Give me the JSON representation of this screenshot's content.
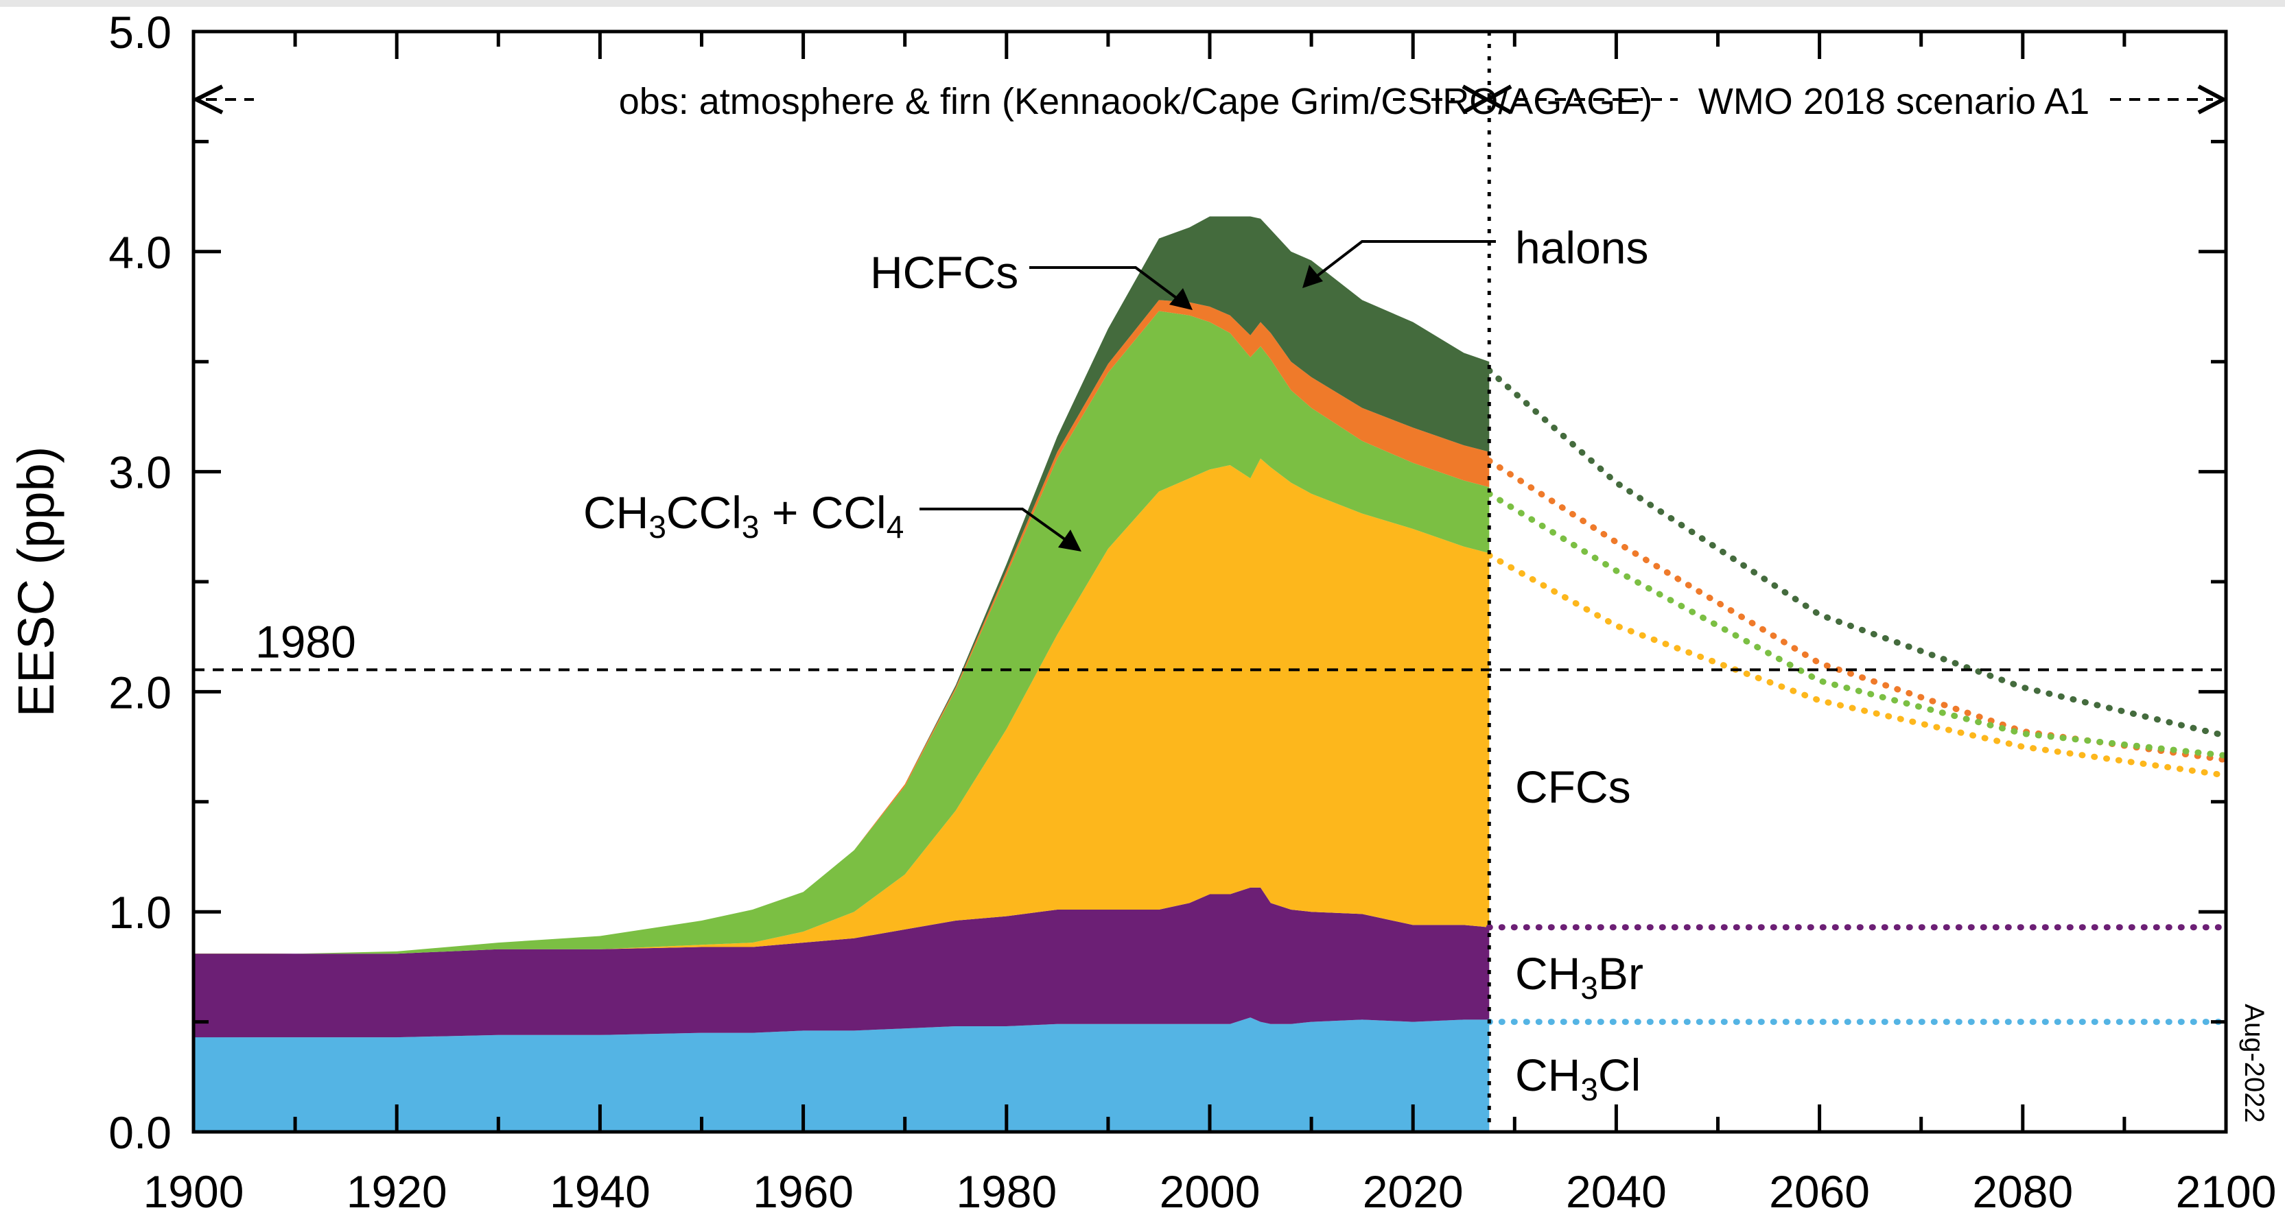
{
  "chart_data": {
    "type": "area",
    "title": "",
    "xlabel": "",
    "ylabel": "EESC (ppb)",
    "xlim": [
      1900,
      2100
    ],
    "ylim": [
      0,
      5
    ],
    "x_ticks": [
      1900,
      1920,
      1940,
      1960,
      1980,
      2000,
      2020,
      2040,
      2060,
      2080,
      2100
    ],
    "x_tick_labels": [
      "1900",
      "1920",
      "1940",
      "1960",
      "1980",
      "2000",
      "2020",
      "2040",
      "2060",
      "2080",
      "2100"
    ],
    "y_ticks": [
      0,
      1,
      2,
      3,
      4,
      5
    ],
    "y_tick_labels": [
      "0.0",
      "1.0",
      "2.0",
      "3.0",
      "4.0",
      "5.0"
    ],
    "grid": false,
    "stacked": true,
    "observation_end_year": 2027.5,
    "x": [
      1900,
      1910,
      1920,
      1930,
      1940,
      1950,
      1955,
      1960,
      1965,
      1970,
      1975,
      1980,
      1985,
      1990,
      1995,
      1998,
      2000,
      2002,
      2004,
      2005,
      2006,
      2008,
      2010,
      2015,
      2020,
      2025,
      2027.5
    ],
    "series": [
      {
        "name": "CH3Cl",
        "color": "#54b4e4",
        "values": [
          0.43,
          0.43,
          0.43,
          0.44,
          0.44,
          0.45,
          0.45,
          0.46,
          0.46,
          0.47,
          0.48,
          0.48,
          0.49,
          0.49,
          0.49,
          0.49,
          0.49,
          0.49,
          0.52,
          0.5,
          0.49,
          0.49,
          0.5,
          0.51,
          0.5,
          0.51,
          0.51
        ]
      },
      {
        "name": "CH3Br",
        "color": "#6c1f75",
        "values": [
          0.38,
          0.38,
          0.38,
          0.39,
          0.39,
          0.39,
          0.39,
          0.4,
          0.42,
          0.45,
          0.48,
          0.5,
          0.52,
          0.52,
          0.52,
          0.55,
          0.59,
          0.59,
          0.59,
          0.61,
          0.55,
          0.52,
          0.5,
          0.48,
          0.44,
          0.43,
          0.42
        ]
      },
      {
        "name": "CFCs",
        "color": "#fdb71c",
        "values": [
          0.0,
          0.0,
          0.0,
          0.0,
          0.0,
          0.01,
          0.02,
          0.05,
          0.12,
          0.25,
          0.5,
          0.85,
          1.25,
          1.64,
          1.9,
          1.93,
          1.93,
          1.95,
          1.86,
          1.95,
          1.98,
          1.94,
          1.9,
          1.82,
          1.8,
          1.72,
          1.7
        ]
      },
      {
        "name": "CH3CCl3 + CCl4",
        "color": "#7bbf43",
        "values": [
          0.0,
          0.0,
          0.01,
          0.03,
          0.06,
          0.11,
          0.15,
          0.18,
          0.28,
          0.4,
          0.55,
          0.7,
          0.8,
          0.8,
          0.82,
          0.74,
          0.67,
          0.6,
          0.55,
          0.51,
          0.49,
          0.42,
          0.39,
          0.33,
          0.3,
          0.3,
          0.3
        ]
      },
      {
        "name": "HCFCs",
        "color": "#ef7a2a",
        "values": [
          0.0,
          0.0,
          0.0,
          0.0,
          0.0,
          0.0,
          0.0,
          0.0,
          0.0,
          0.01,
          0.01,
          0.02,
          0.03,
          0.04,
          0.05,
          0.06,
          0.07,
          0.08,
          0.1,
          0.11,
          0.12,
          0.13,
          0.14,
          0.15,
          0.16,
          0.16,
          0.16
        ]
      },
      {
        "name": "halons",
        "color": "#446b3d",
        "values": [
          0.0,
          0.0,
          0.0,
          0.0,
          0.0,
          0.0,
          0.0,
          0.0,
          0.0,
          0.0,
          0.01,
          0.03,
          0.07,
          0.16,
          0.28,
          0.34,
          0.41,
          0.45,
          0.54,
          0.47,
          0.47,
          0.5,
          0.53,
          0.49,
          0.48,
          0.42,
          0.41
        ]
      }
    ],
    "projection": {
      "x": [
        2027.5,
        2040,
        2060,
        2080,
        2100
      ],
      "lines": [
        {
          "name": "halons",
          "color": "#446b3d",
          "values": [
            3.46,
            2.95,
            2.35,
            2.02,
            1.8
          ]
        },
        {
          "name": "HCFCs",
          "color": "#ef7a2a",
          "values": [
            3.05,
            2.68,
            2.13,
            1.82,
            1.69
          ]
        },
        {
          "name": "CH3CCl3 + CCl4",
          "color": "#7bbf43",
          "values": [
            2.9,
            2.55,
            2.05,
            1.81,
            1.71
          ]
        },
        {
          "name": "CFCs",
          "color": "#fdb71c",
          "values": [
            2.62,
            2.3,
            1.96,
            1.75,
            1.62
          ]
        },
        {
          "name": "CH3Br",
          "color": "#6c1f75",
          "values": [
            0.93,
            0.93,
            0.93,
            0.93,
            0.93
          ]
        },
        {
          "name": "CH3Cl",
          "color": "#54b4e4",
          "values": [
            0.5,
            0.5,
            0.5,
            0.5,
            0.5
          ]
        }
      ]
    },
    "reference_line": {
      "label": "1980",
      "value": 2.1
    },
    "annotations": {
      "obs_label": "obs: atmosphere & firn (Kennaook/Cape Grim/CSIRO/AGAGE)",
      "scenario_label": "WMO 2018 scenario A1",
      "date_stamp": "Aug-2022"
    },
    "series_labels": {
      "halons": "halons",
      "hcfcs": "HCFCs",
      "ch3ccl3_main": "CH",
      "ch3ccl3_sub1": "3",
      "ch3ccl3_mid": "CCl",
      "ch3ccl3_sub2": "3",
      "ch3ccl3_plus": " + CCl",
      "ch3ccl3_sub3": "4",
      "cfcs": "CFCs",
      "ch3br_main": "CH",
      "ch3br_sub": "3",
      "ch3br_end": "Br",
      "ch3cl_main": "CH",
      "ch3cl_sub": "3",
      "ch3cl_end": "Cl"
    }
  }
}
